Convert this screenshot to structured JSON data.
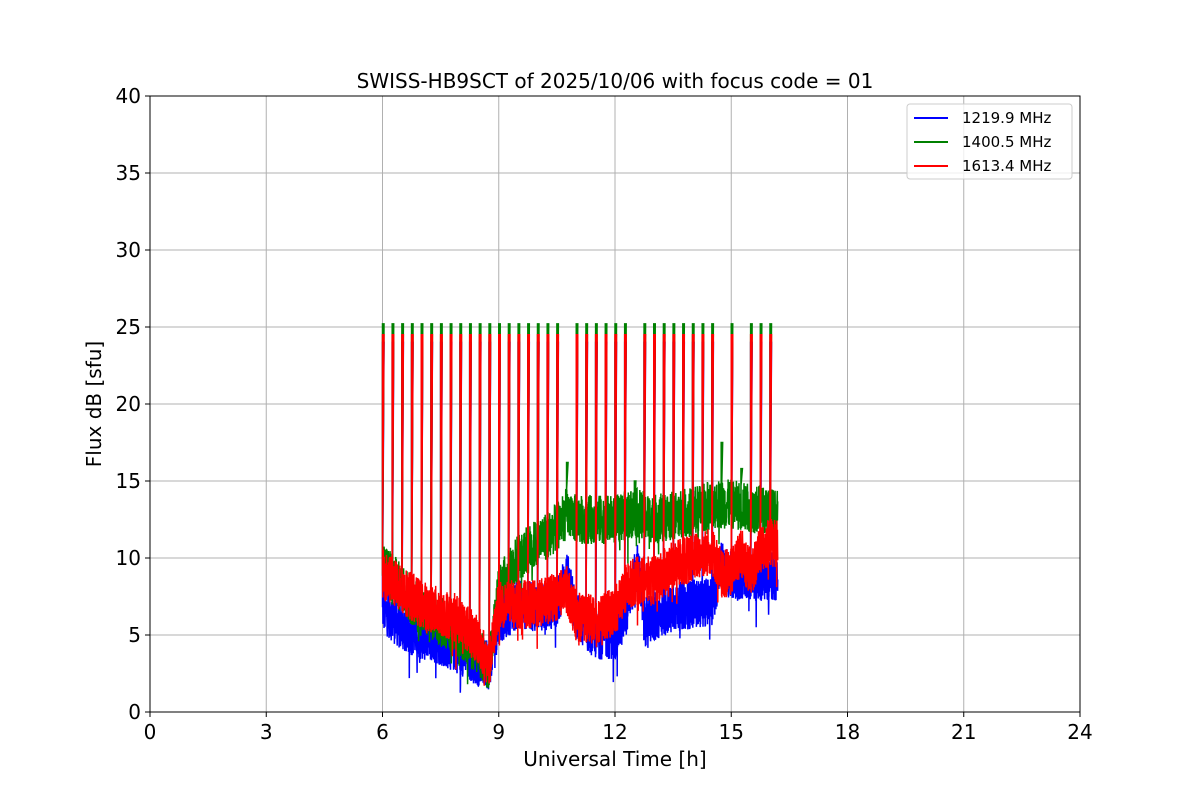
{
  "chart_data": {
    "type": "line",
    "title": "SWISS-HB9SCT of 2025/10/06 with focus code = 01",
    "xlabel": "Universal Time [h]",
    "ylabel": "Flux dB [sfu]",
    "xlim": [
      0,
      24
    ],
    "ylim": [
      0,
      40
    ],
    "xticks": [
      0,
      3,
      6,
      9,
      12,
      15,
      18,
      21,
      24
    ],
    "yticks": [
      0,
      5,
      10,
      15,
      20,
      25,
      30,
      35,
      40
    ],
    "grid": true,
    "legend_position": "top-right",
    "data_range_h": [
      6.0,
      16.2
    ],
    "noise_amplitude_db": 1.6,
    "spike_times_h": [
      6.0,
      6.25,
      6.5,
      6.75,
      7.0,
      7.25,
      7.5,
      7.75,
      8.0,
      8.25,
      8.5,
      8.75,
      9.0,
      9.25,
      9.5,
      9.75,
      10.0,
      10.25,
      10.5,
      11.0,
      11.25,
      11.5,
      11.75,
      12.0,
      12.25,
      12.75,
      13.0,
      13.25,
      13.5,
      13.75,
      14.0,
      14.25,
      14.5,
      15.0,
      15.5,
      15.75,
      16.0
    ],
    "series": [
      {
        "name": "1219.9 MHz",
        "color": "#0000ff",
        "spike_peak": 24.0,
        "baseline_h": [
          6.0,
          6.5,
          7.0,
          7.5,
          8.0,
          8.5,
          8.75,
          9.0,
          9.5,
          10.0,
          10.5,
          10.75,
          11.0,
          11.5,
          12.0,
          12.25,
          12.6,
          12.75,
          13.5,
          14.5,
          14.75,
          15.0,
          16.0,
          16.2
        ],
        "baseline_db": [
          6.8,
          5.5,
          5.0,
          4.6,
          4.0,
          3.2,
          3.0,
          6.0,
          7.0,
          6.8,
          7.0,
          9.0,
          6.2,
          5.0,
          5.0,
          6.2,
          9.6,
          5.8,
          6.8,
          7.2,
          9.5,
          8.8,
          8.8,
          8.8
        ],
        "extra_spikes": []
      },
      {
        "name": "1400.5 MHz",
        "color": "#008000",
        "spike_peak": 25.2,
        "baseline_h": [
          6.0,
          6.5,
          7.0,
          7.5,
          8.0,
          8.5,
          8.75,
          9.0,
          9.5,
          10.0,
          10.5,
          10.75,
          11.0,
          12.0,
          12.5,
          13.0,
          14.0,
          14.5,
          15.0,
          16.0,
          16.2
        ],
        "baseline_db": [
          9.5,
          8.0,
          6.5,
          6.0,
          5.0,
          3.8,
          3.0,
          8.0,
          10.0,
          11.0,
          12.0,
          13.0,
          12.5,
          12.5,
          13.0,
          12.5,
          13.0,
          13.5,
          13.5,
          13.0,
          12.8
        ],
        "extra_spikes": [
          [
            10.75,
            16.2
          ],
          [
            12.5,
            15.0
          ],
          [
            14.74,
            17.5
          ],
          [
            15.25,
            15.8
          ]
        ]
      },
      {
        "name": "1613.4 MHz",
        "color": "#ff0000",
        "spike_peak": 24.5,
        "baseline_h": [
          6.0,
          6.5,
          7.0,
          7.5,
          8.0,
          8.5,
          8.75,
          9.0,
          9.5,
          10.0,
          10.5,
          10.75,
          11.0,
          11.5,
          12.0,
          12.25,
          12.5,
          13.0,
          13.5,
          14.0,
          14.5,
          14.75,
          15.0,
          15.25,
          15.5,
          15.75,
          16.0,
          16.2
        ],
        "baseline_db": [
          9.0,
          8.0,
          7.0,
          6.5,
          6.0,
          4.5,
          3.0,
          7.0,
          7.0,
          7.0,
          7.5,
          8.0,
          6.2,
          6.0,
          6.5,
          8.0,
          8.5,
          8.5,
          9.5,
          10.0,
          10.5,
          9.0,
          9.0,
          10.5,
          9.0,
          10.5,
          11.0,
          11.0
        ],
        "extra_spikes": []
      }
    ]
  }
}
